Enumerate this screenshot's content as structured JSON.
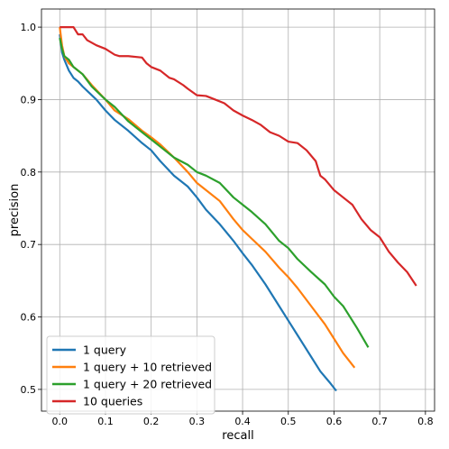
{
  "chart_data": {
    "type": "line",
    "title": "",
    "xlabel": "recall",
    "ylabel": "precision",
    "xlim": [
      -0.04,
      0.82
    ],
    "ylim": [
      0.47,
      1.025
    ],
    "xticks": [
      0.0,
      0.1,
      0.2,
      0.3,
      0.4,
      0.5,
      0.6,
      0.7,
      0.8
    ],
    "xtick_labels": [
      "0.0",
      "0.1",
      "0.2",
      "0.3",
      "0.4",
      "0.5",
      "0.6",
      "0.7",
      "0.8"
    ],
    "yticks": [
      0.5,
      0.6,
      0.7,
      0.8,
      0.9,
      1.0
    ],
    "ytick_labels": [
      "0.5",
      "0.6",
      "0.7",
      "0.8",
      "0.9",
      "1.0"
    ],
    "grid": true,
    "legend_position": "lower-left",
    "series": [
      {
        "name": "1 query",
        "color": "#1f77b4",
        "x": [
          0.0,
          0.005,
          0.01,
          0.02,
          0.03,
          0.04,
          0.05,
          0.06,
          0.08,
          0.1,
          0.12,
          0.15,
          0.18,
          0.2,
          0.22,
          0.25,
          0.28,
          0.3,
          0.32,
          0.35,
          0.38,
          0.4,
          0.42,
          0.45,
          0.48,
          0.5,
          0.52,
          0.55,
          0.57,
          0.59,
          0.605
        ],
        "y": [
          0.99,
          0.965,
          0.955,
          0.94,
          0.93,
          0.925,
          0.918,
          0.912,
          0.9,
          0.885,
          0.872,
          0.857,
          0.84,
          0.83,
          0.815,
          0.795,
          0.78,
          0.765,
          0.748,
          0.728,
          0.705,
          0.688,
          0.672,
          0.645,
          0.615,
          0.595,
          0.575,
          0.545,
          0.525,
          0.51,
          0.498
        ]
      },
      {
        "name": "1 query + 10 retrieved",
        "color": "#ff7f0e",
        "x": [
          0.0,
          0.005,
          0.01,
          0.02,
          0.03,
          0.05,
          0.07,
          0.1,
          0.12,
          0.15,
          0.18,
          0.2,
          0.22,
          0.25,
          0.28,
          0.3,
          0.32,
          0.35,
          0.38,
          0.4,
          0.42,
          0.45,
          0.48,
          0.5,
          0.52,
          0.55,
          0.58,
          0.6,
          0.62,
          0.645
        ],
        "y": [
          1.0,
          0.975,
          0.96,
          0.95,
          0.945,
          0.935,
          0.92,
          0.9,
          0.885,
          0.873,
          0.857,
          0.848,
          0.838,
          0.82,
          0.8,
          0.785,
          0.775,
          0.76,
          0.735,
          0.72,
          0.708,
          0.69,
          0.668,
          0.655,
          0.64,
          0.615,
          0.59,
          0.57,
          0.55,
          0.53
        ]
      },
      {
        "name": "1 query + 20 retrieved",
        "color": "#2ca02c",
        "x": [
          0.0,
          0.005,
          0.01,
          0.02,
          0.03,
          0.05,
          0.07,
          0.1,
          0.12,
          0.15,
          0.18,
          0.2,
          0.22,
          0.25,
          0.28,
          0.3,
          0.32,
          0.35,
          0.38,
          0.4,
          0.42,
          0.45,
          0.48,
          0.5,
          0.52,
          0.55,
          0.58,
          0.6,
          0.62,
          0.65,
          0.675
        ],
        "y": [
          0.985,
          0.97,
          0.96,
          0.955,
          0.945,
          0.935,
          0.918,
          0.9,
          0.89,
          0.87,
          0.855,
          0.845,
          0.835,
          0.82,
          0.81,
          0.8,
          0.795,
          0.785,
          0.765,
          0.755,
          0.745,
          0.728,
          0.705,
          0.695,
          0.68,
          0.662,
          0.645,
          0.628,
          0.615,
          0.585,
          0.558
        ]
      },
      {
        "name": "10 queries",
        "color": "#d62728",
        "x": [
          0.0,
          0.01,
          0.02,
          0.03,
          0.04,
          0.05,
          0.06,
          0.08,
          0.1,
          0.12,
          0.13,
          0.15,
          0.18,
          0.19,
          0.2,
          0.22,
          0.24,
          0.25,
          0.27,
          0.28,
          0.3,
          0.32,
          0.34,
          0.36,
          0.38,
          0.4,
          0.42,
          0.44,
          0.46,
          0.48,
          0.5,
          0.52,
          0.54,
          0.56,
          0.57,
          0.58,
          0.6,
          0.62,
          0.64,
          0.66,
          0.68,
          0.7,
          0.72,
          0.74,
          0.76,
          0.78
        ],
        "y": [
          1.0,
          1.0,
          1.0,
          1.0,
          0.99,
          0.99,
          0.982,
          0.975,
          0.97,
          0.962,
          0.96,
          0.96,
          0.958,
          0.95,
          0.945,
          0.94,
          0.93,
          0.928,
          0.92,
          0.915,
          0.906,
          0.905,
          0.9,
          0.895,
          0.885,
          0.878,
          0.872,
          0.865,
          0.855,
          0.85,
          0.842,
          0.84,
          0.83,
          0.815,
          0.795,
          0.79,
          0.775,
          0.765,
          0.755,
          0.735,
          0.72,
          0.71,
          0.69,
          0.675,
          0.662,
          0.643
        ]
      }
    ]
  }
}
